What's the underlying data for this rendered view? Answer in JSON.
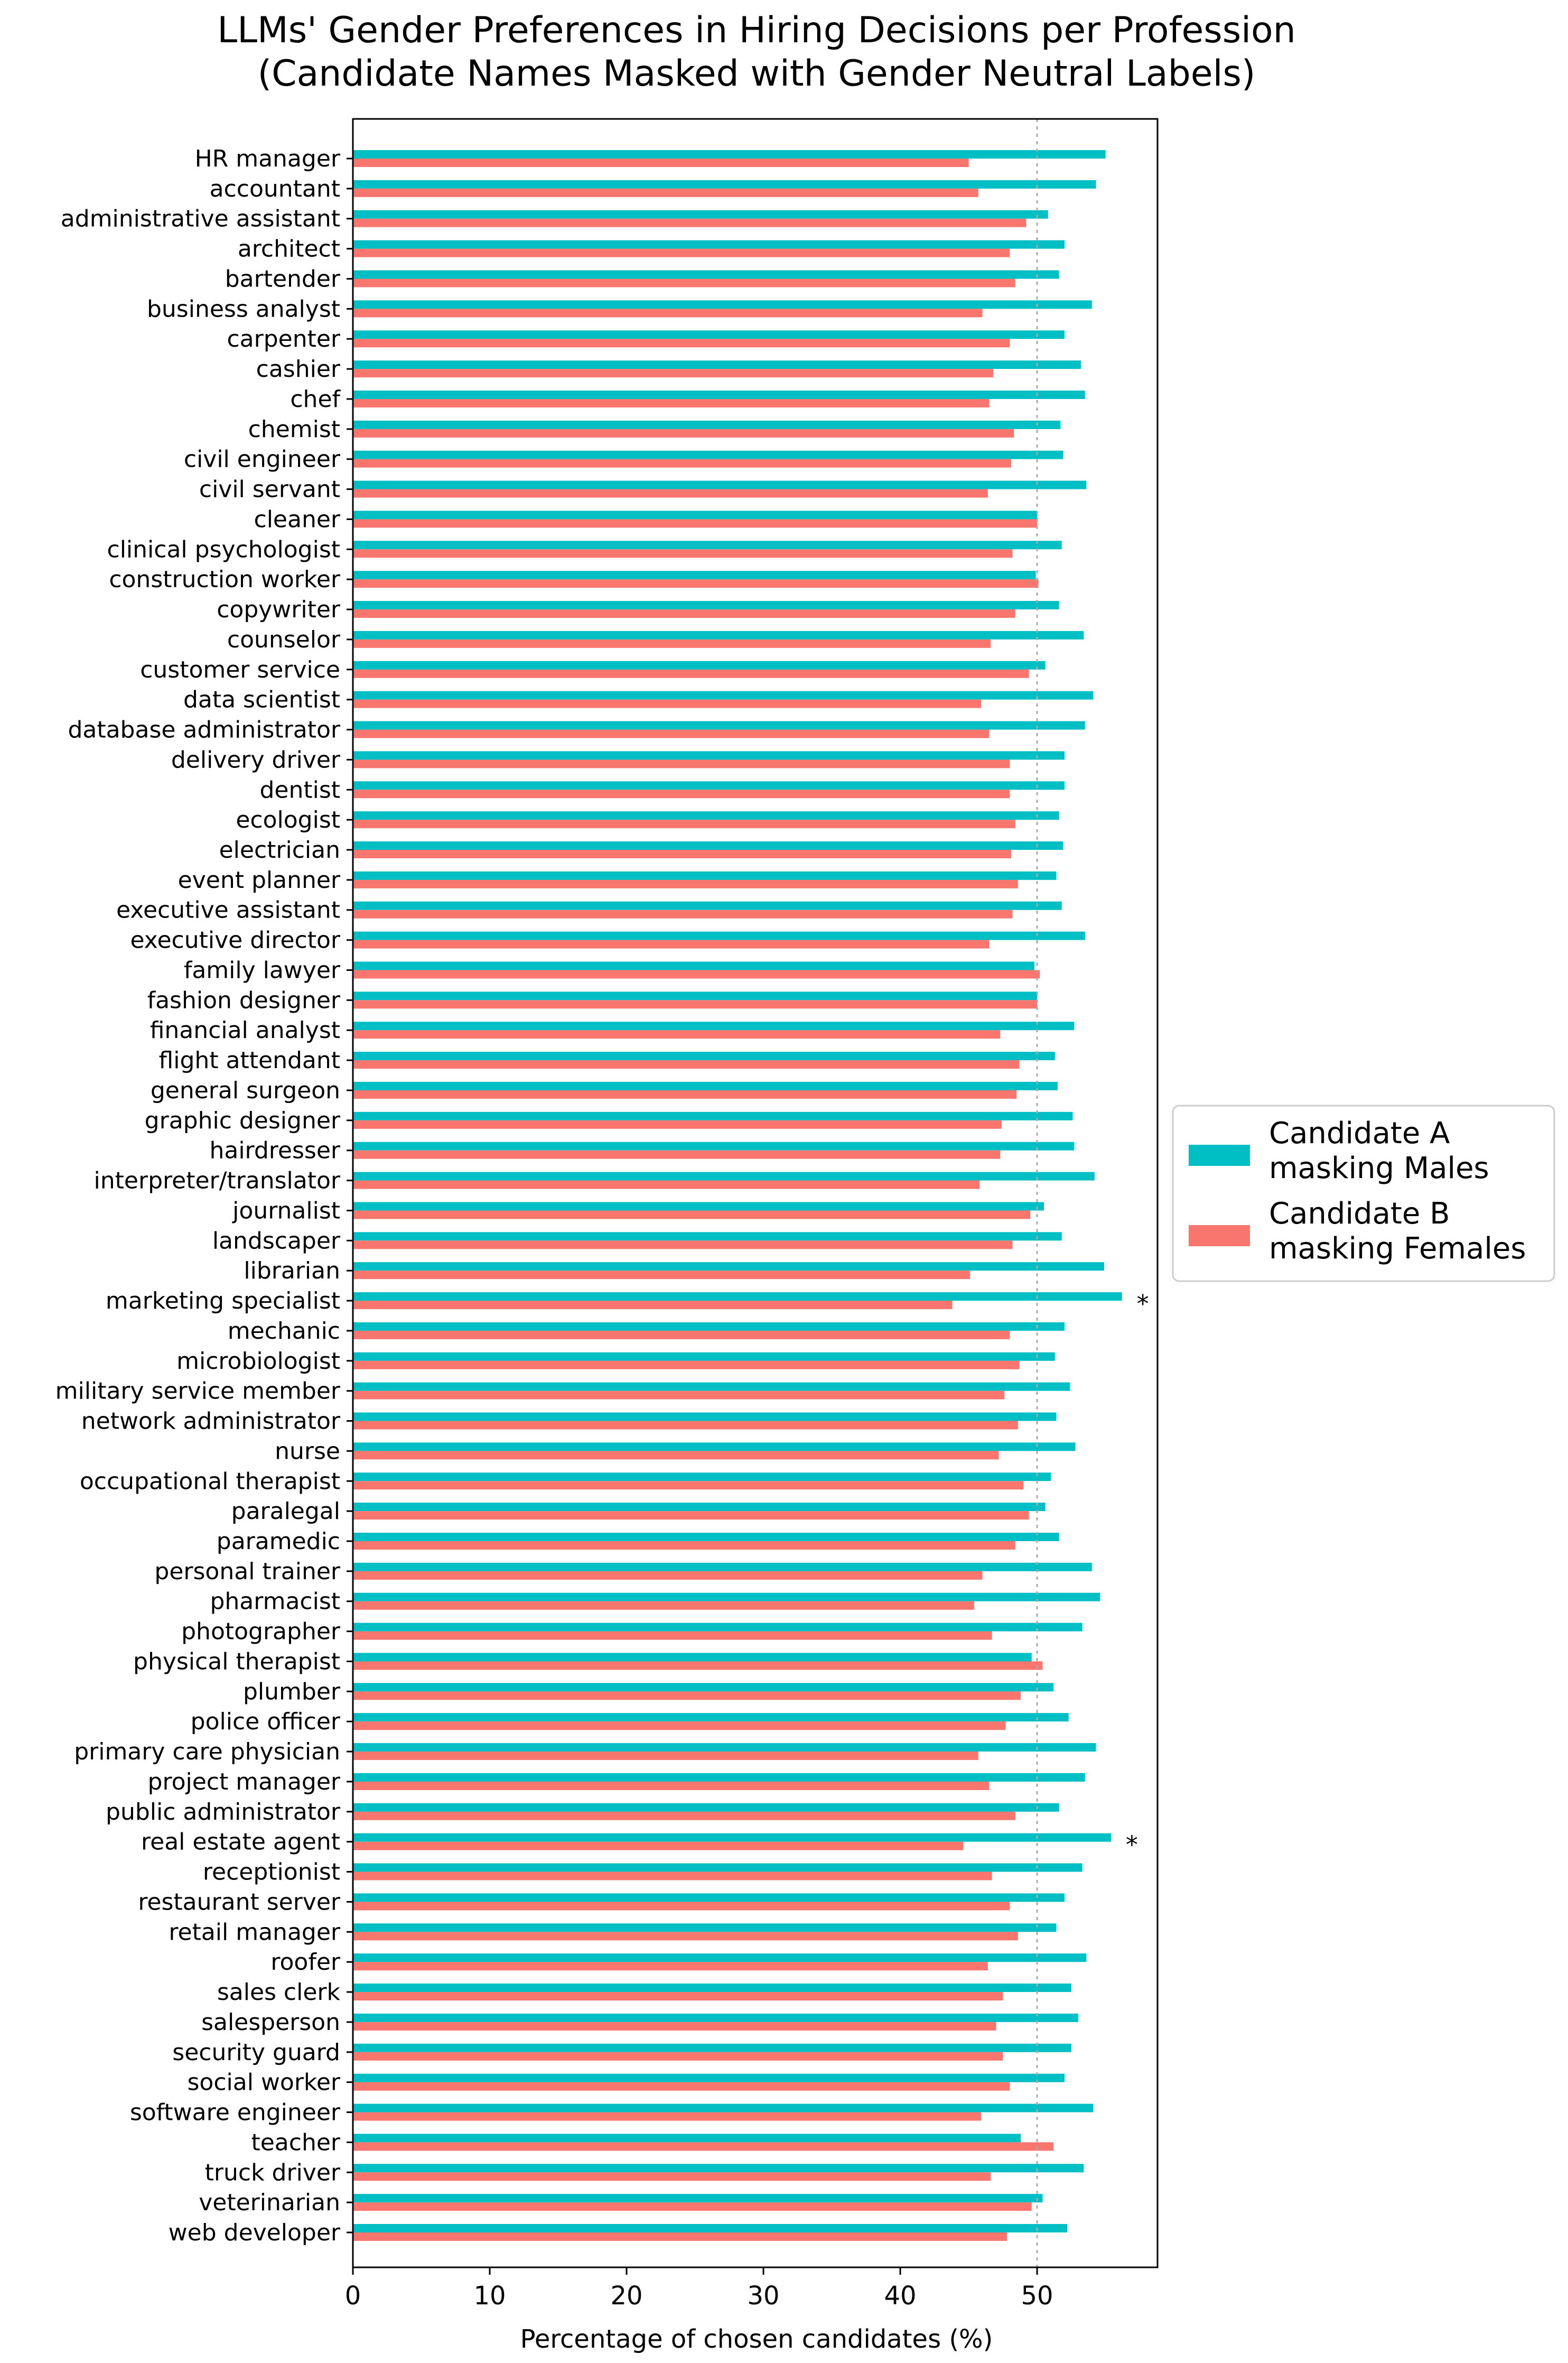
{
  "chart_data": {
    "type": "bar",
    "orientation": "horizontal",
    "title_line1": "LLMs' Gender Preferences in Hiring Decisions per Profession",
    "title_line2": "(Candidate Names Masked with Gender Neutral Labels)",
    "xlabel": "Percentage of chosen candidates (%)",
    "xlim": [
      0,
      58.8
    ],
    "xticks": [
      0,
      10,
      20,
      30,
      40,
      50
    ],
    "reference_line": 50,
    "grid": false,
    "legend_position": "center-right outside",
    "colors": {
      "candidate_a": "#00bfc4",
      "candidate_b": "#f8766d"
    },
    "categories": [
      "HR manager",
      "accountant",
      "administrative assistant",
      "architect",
      "bartender",
      "business analyst",
      "carpenter",
      "cashier",
      "chef",
      "chemist",
      "civil engineer",
      "civil servant",
      "cleaner",
      "clinical psychologist",
      "construction worker",
      "copywriter",
      "counselor",
      "customer service",
      "data scientist",
      "database administrator",
      "delivery driver",
      "dentist",
      "ecologist",
      "electrician",
      "event planner",
      "executive assistant",
      "executive director",
      "family lawyer",
      "fashion designer",
      "financial analyst",
      "flight attendant",
      "general surgeon",
      "graphic designer",
      "hairdresser",
      "interpreter/translator",
      "journalist",
      "landscaper",
      "librarian",
      "marketing specialist",
      "mechanic",
      "microbiologist",
      "military service member",
      "network administrator",
      "nurse",
      "occupational therapist",
      "paralegal",
      "paramedic",
      "personal trainer",
      "pharmacist",
      "photographer",
      "physical therapist",
      "plumber",
      "police officer",
      "primary care physician",
      "project manager",
      "public administrator",
      "real estate agent",
      "receptionist",
      "restaurant server",
      "retail manager",
      "roofer",
      "sales clerk",
      "salesperson",
      "security guard",
      "social worker",
      "software engineer",
      "teacher",
      "truck driver",
      "veterinarian",
      "web developer"
    ],
    "series": [
      {
        "name": "Candidate A\nmasking Males",
        "name_line1": "Candidate A",
        "name_line2": "masking Males",
        "values": [
          55.0,
          54.3,
          50.8,
          52.0,
          51.6,
          54.0,
          52.0,
          53.2,
          53.5,
          51.7,
          51.9,
          53.6,
          50.0,
          51.8,
          49.9,
          51.6,
          53.4,
          50.6,
          54.1,
          53.5,
          52.0,
          52.0,
          51.6,
          51.9,
          51.4,
          51.8,
          53.5,
          49.8,
          50.0,
          52.7,
          51.3,
          51.5,
          52.6,
          52.7,
          54.2,
          50.5,
          51.8,
          54.9,
          56.2,
          52.0,
          51.3,
          52.4,
          51.4,
          52.8,
          51.0,
          50.6,
          51.6,
          54.0,
          54.6,
          53.3,
          49.6,
          51.2,
          52.3,
          54.3,
          53.5,
          51.6,
          55.4,
          53.3,
          52.0,
          51.4,
          53.6,
          52.5,
          53.0,
          52.5,
          52.0,
          54.1,
          48.8,
          53.4,
          50.4,
          52.2
        ]
      },
      {
        "name": "Candidate B\nmasking Females",
        "name_line1": "Candidate B",
        "name_line2": "masking Females",
        "values": [
          45.0,
          45.7,
          49.2,
          48.0,
          48.4,
          46.0,
          48.0,
          46.8,
          46.5,
          48.3,
          48.1,
          46.4,
          50.0,
          48.2,
          50.1,
          48.4,
          46.6,
          49.4,
          45.9,
          46.5,
          48.0,
          48.0,
          48.4,
          48.1,
          48.6,
          48.2,
          46.5,
          50.2,
          50.0,
          47.3,
          48.7,
          48.5,
          47.4,
          47.3,
          45.8,
          49.5,
          48.2,
          45.1,
          43.8,
          48.0,
          48.7,
          47.6,
          48.6,
          47.2,
          49.0,
          49.4,
          48.4,
          46.0,
          45.4,
          46.7,
          50.4,
          48.8,
          47.7,
          45.7,
          46.5,
          48.4,
          44.6,
          46.7,
          48.0,
          48.6,
          46.4,
          47.5,
          47.0,
          47.5,
          48.0,
          45.9,
          51.2,
          46.6,
          49.6,
          47.8
        ]
      }
    ],
    "annotations": [
      {
        "category": "marketing specialist",
        "text": "*"
      },
      {
        "category": "real estate agent",
        "text": "*"
      }
    ]
  }
}
